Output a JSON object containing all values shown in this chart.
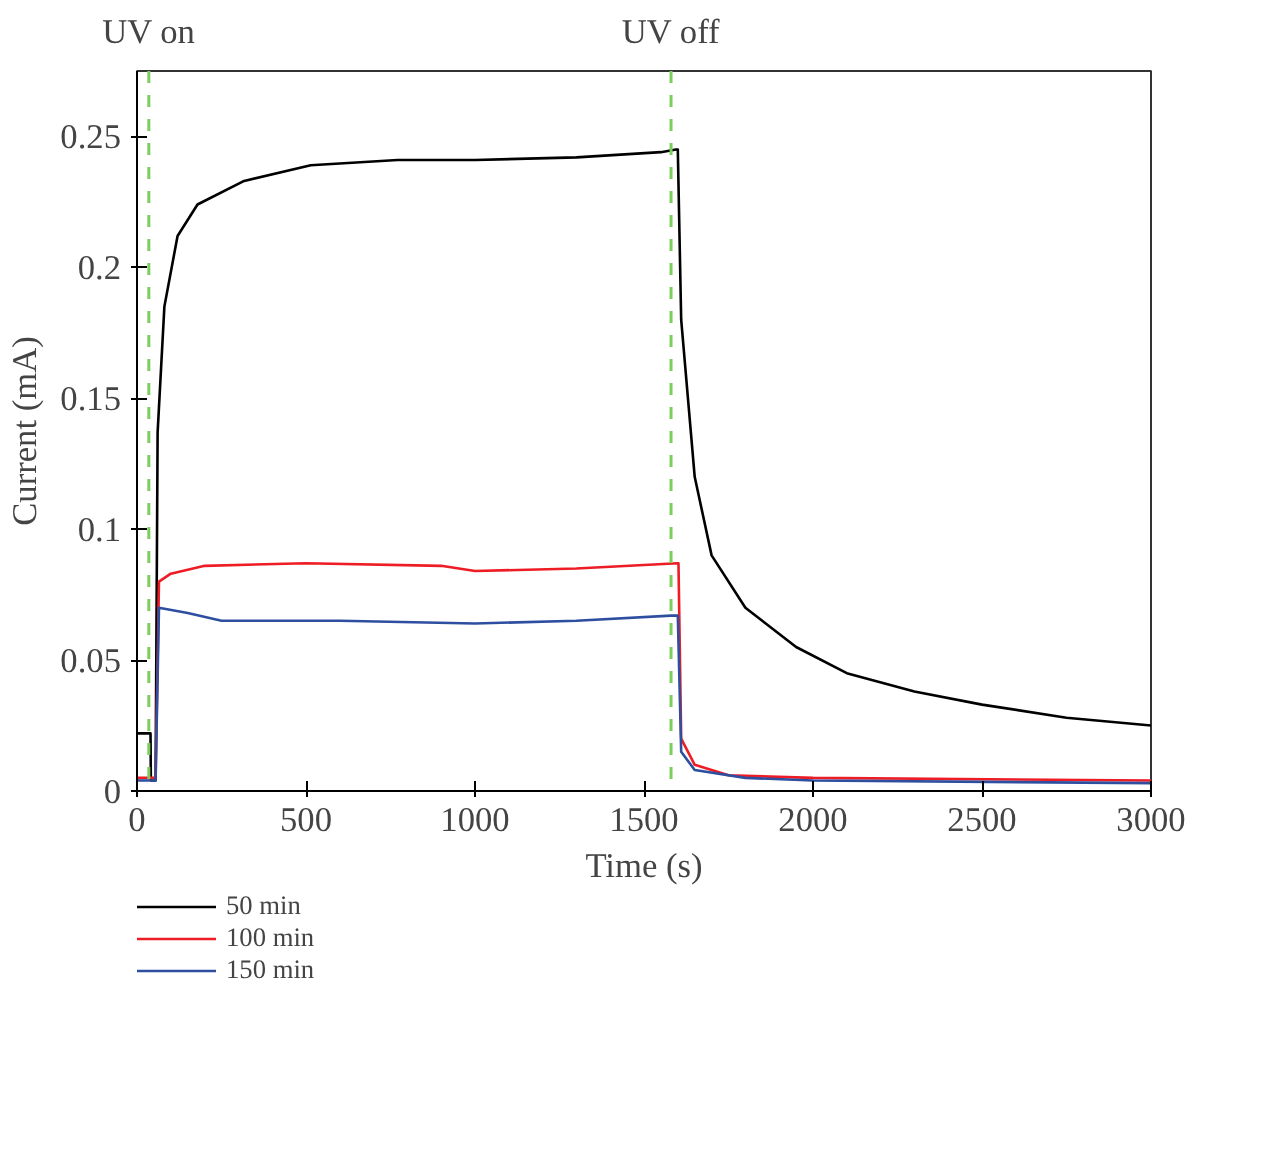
{
  "chart_data": {
    "type": "line",
    "xlabel": "Time (s)",
    "ylabel": "Current (mA)",
    "xlim": [
      0,
      3000
    ],
    "ylim": [
      0,
      0.275
    ],
    "xticks": [
      0,
      500,
      1000,
      1500,
      2000,
      2500,
      3000
    ],
    "yticks": [
      0,
      0.05,
      0.1,
      0.15,
      0.2,
      0.25
    ],
    "grid": false,
    "legend": "bottom",
    "line_style": "solid",
    "ref_lines": [
      {
        "axis": "x",
        "value": 35,
        "label": "UV on",
        "color": "#7ccd5c",
        "line_style": "dashed"
      },
      {
        "axis": "x",
        "value": 1580,
        "label": "UV off",
        "color": "#7ccd5c",
        "line_style": "dashed"
      }
    ],
    "series": [
      {
        "name": "50 min",
        "color": "#000000",
        "x": [
          0,
          40,
          41,
          55,
          61,
          81,
          120,
          179,
          317,
          514,
          771,
          1000,
          1300,
          1550,
          1595,
          1600,
          1610,
          1650,
          1700,
          1800,
          1950,
          2100,
          2300,
          2500,
          2750,
          3000
        ],
        "values": [
          0.022,
          0.022,
          0.004,
          0.004,
          0.137,
          0.185,
          0.212,
          0.224,
          0.233,
          0.239,
          0.241,
          0.241,
          0.242,
          0.244,
          0.245,
          0.245,
          0.18,
          0.12,
          0.09,
          0.07,
          0.055,
          0.045,
          0.038,
          0.033,
          0.028,
          0.025
        ]
      },
      {
        "name": "100 min",
        "color": "#ee1c24",
        "x": [
          0,
          55,
          65,
          100,
          200,
          500,
          900,
          1000,
          1300,
          1600,
          1602,
          1610,
          1650,
          1750,
          2000,
          3000
        ],
        "values": [
          0.005,
          0.005,
          0.08,
          0.083,
          0.086,
          0.087,
          0.086,
          0.084,
          0.085,
          0.087,
          0.087,
          0.02,
          0.01,
          0.006,
          0.005,
          0.004
        ]
      },
      {
        "name": "150 min",
        "color": "#2e4ea0",
        "x": [
          0,
          55,
          65,
          150,
          250,
          600,
          1000,
          1300,
          1580,
          1600,
          1610,
          1650,
          1800,
          2000,
          3000
        ],
        "values": [
          0.004,
          0.004,
          0.07,
          0.068,
          0.065,
          0.065,
          0.064,
          0.065,
          0.067,
          0.067,
          0.015,
          0.008,
          0.005,
          0.004,
          0.003
        ]
      }
    ]
  }
}
